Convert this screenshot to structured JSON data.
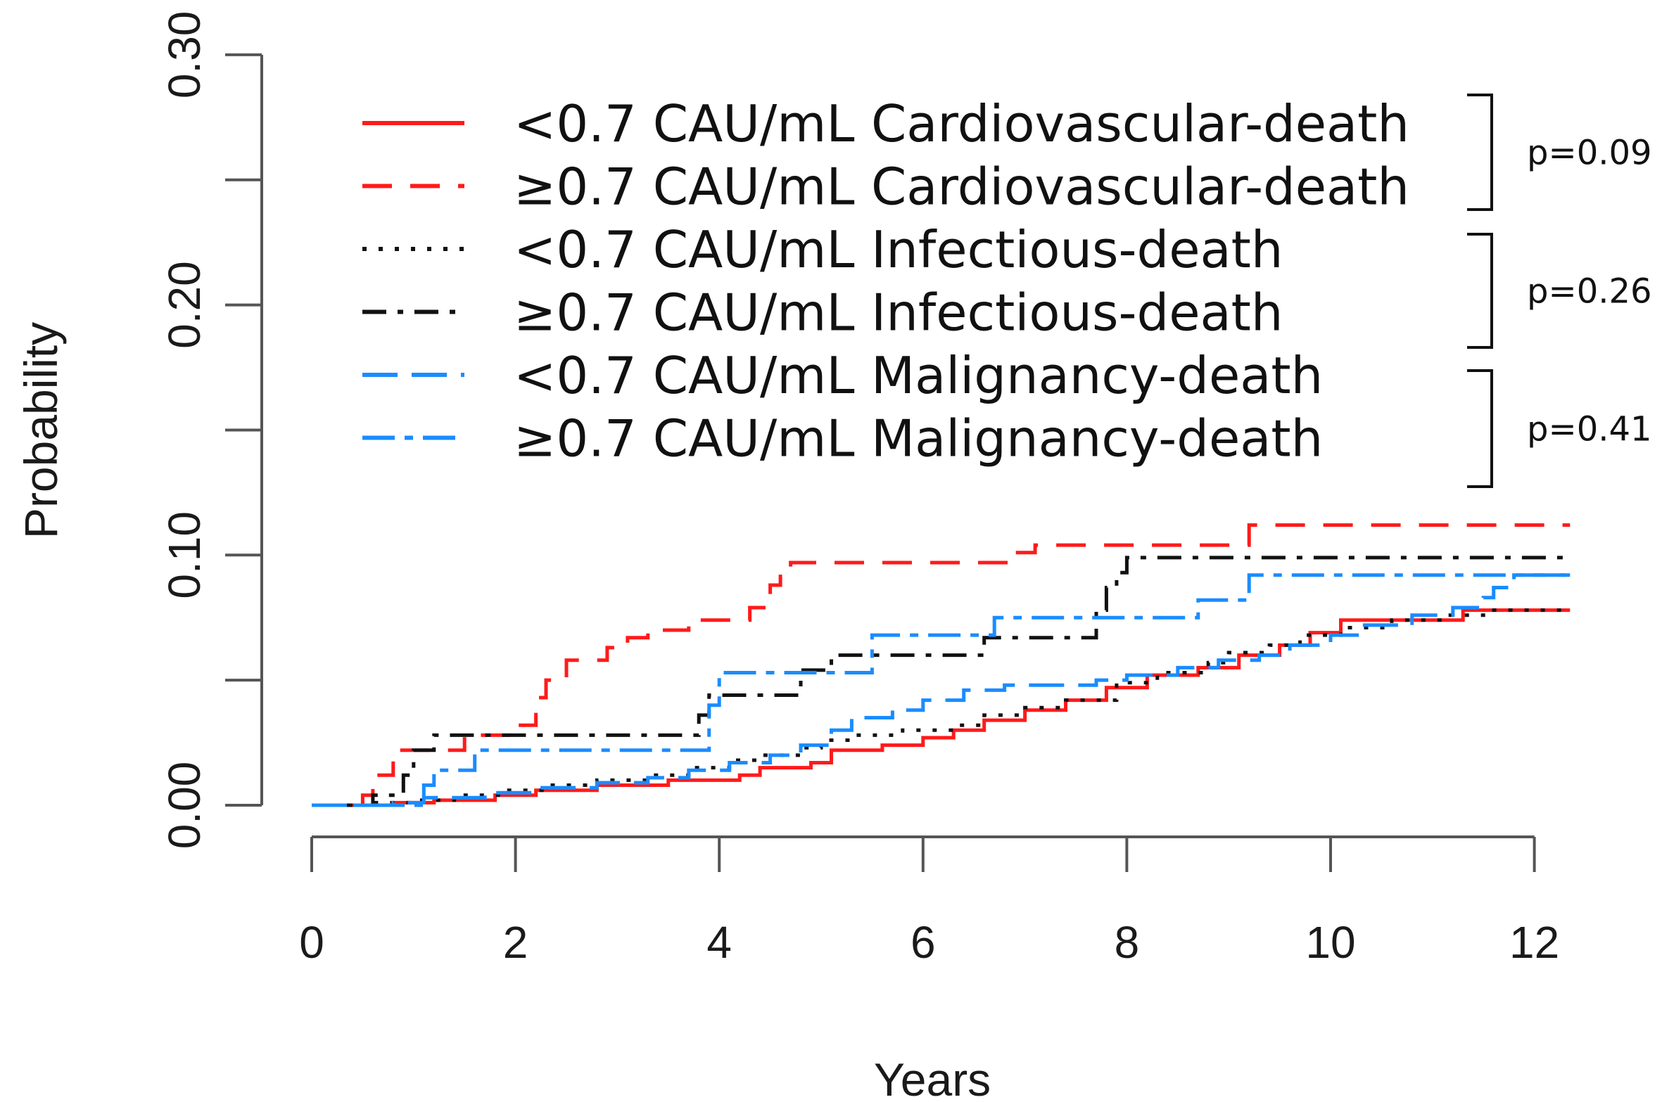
{
  "chart_data": {
    "type": "line",
    "subtype": "step",
    "xlabel": "Years",
    "ylabel": "Probability",
    "xlim": [
      0,
      12.4
    ],
    "ylim": [
      0,
      0.3
    ],
    "xticks": [
      0,
      2,
      4,
      6,
      8,
      10,
      12
    ],
    "xtick_labels": [
      "0",
      "2",
      "4",
      "6",
      "8",
      "10",
      "12"
    ],
    "yticks": [
      0,
      0.05,
      0.1,
      0.15,
      0.2,
      0.25,
      0.3
    ],
    "ytick_labels": [
      "0.00",
      "",
      "0.10",
      "",
      "0.20",
      "",
      "0.30"
    ],
    "series": [
      {
        "name": "<0.7 CAU/mL Cardiovascular-death",
        "color": "#ff1a1a",
        "dash": "solid",
        "points": [
          [
            0,
            0
          ],
          [
            0.8,
            0.001
          ],
          [
            1.2,
            0.002
          ],
          [
            1.8,
            0.004
          ],
          [
            2.2,
            0.006
          ],
          [
            2.8,
            0.008
          ],
          [
            3.5,
            0.01
          ],
          [
            4.2,
            0.012
          ],
          [
            4.4,
            0.015
          ],
          [
            4.9,
            0.017
          ],
          [
            5.1,
            0.022
          ],
          [
            5.6,
            0.024
          ],
          [
            6.0,
            0.027
          ],
          [
            6.3,
            0.03
          ],
          [
            6.6,
            0.034
          ],
          [
            7.0,
            0.038
          ],
          [
            7.4,
            0.042
          ],
          [
            7.8,
            0.047
          ],
          [
            8.2,
            0.052
          ],
          [
            8.7,
            0.055
          ],
          [
            9.1,
            0.06
          ],
          [
            9.5,
            0.064
          ],
          [
            9.8,
            0.069
          ],
          [
            10.1,
            0.074
          ],
          [
            10.6,
            0.074
          ],
          [
            11.0,
            0.074
          ],
          [
            11.3,
            0.078
          ],
          [
            12.35,
            0.078
          ]
        ]
      },
      {
        "name": "≥0.7 CAU/mL Cardiovascular-death",
        "color": "#ff1a1a",
        "dash": "longdash",
        "points": [
          [
            0,
            0
          ],
          [
            0.5,
            0.004
          ],
          [
            0.6,
            0.012
          ],
          [
            0.8,
            0.022
          ],
          [
            1.2,
            0.022
          ],
          [
            1.5,
            0.028
          ],
          [
            2.0,
            0.032
          ],
          [
            2.2,
            0.043
          ],
          [
            2.3,
            0.05
          ],
          [
            2.5,
            0.058
          ],
          [
            2.9,
            0.063
          ],
          [
            3.1,
            0.067
          ],
          [
            3.3,
            0.07
          ],
          [
            3.7,
            0.074
          ],
          [
            4.3,
            0.079
          ],
          [
            4.5,
            0.088
          ],
          [
            4.6,
            0.093
          ],
          [
            4.7,
            0.097
          ],
          [
            5.3,
            0.097
          ],
          [
            6.9,
            0.101
          ],
          [
            7.1,
            0.104
          ],
          [
            9.0,
            0.104
          ],
          [
            9.2,
            0.112
          ],
          [
            12.35,
            0.112
          ]
        ]
      },
      {
        "name": "<0.7 CAU/mL Infectious-death",
        "color": "#111111",
        "dash": "dotted",
        "points": [
          [
            0,
            0
          ],
          [
            0.6,
            0.001
          ],
          [
            1.0,
            0.002
          ],
          [
            1.4,
            0.004
          ],
          [
            1.9,
            0.006
          ],
          [
            2.3,
            0.008
          ],
          [
            2.8,
            0.01
          ],
          [
            3.3,
            0.012
          ],
          [
            3.7,
            0.015
          ],
          [
            4.1,
            0.018
          ],
          [
            4.4,
            0.02
          ],
          [
            4.8,
            0.023
          ],
          [
            5.0,
            0.026
          ],
          [
            5.3,
            0.028
          ],
          [
            5.8,
            0.03
          ],
          [
            6.3,
            0.032
          ],
          [
            6.6,
            0.036
          ],
          [
            7.0,
            0.039
          ],
          [
            7.4,
            0.042
          ],
          [
            7.9,
            0.049
          ],
          [
            8.3,
            0.053
          ],
          [
            8.8,
            0.057
          ],
          [
            9.0,
            0.061
          ],
          [
            9.4,
            0.064
          ],
          [
            9.7,
            0.068
          ],
          [
            10.1,
            0.071
          ],
          [
            10.6,
            0.074
          ],
          [
            11.1,
            0.076
          ],
          [
            11.5,
            0.078
          ],
          [
            12.35,
            0.078
          ]
        ]
      },
      {
        "name": "≥0.7 CAU/mL Infectious-death",
        "color": "#111111",
        "dash": "dashdot",
        "points": [
          [
            0,
            0
          ],
          [
            0.6,
            0.004
          ],
          [
            0.9,
            0.012
          ],
          [
            1.0,
            0.022
          ],
          [
            1.2,
            0.028
          ],
          [
            3.6,
            0.028
          ],
          [
            3.8,
            0.036
          ],
          [
            3.9,
            0.044
          ],
          [
            4.7,
            0.044
          ],
          [
            4.8,
            0.054
          ],
          [
            5.1,
            0.06
          ],
          [
            6.5,
            0.06
          ],
          [
            6.6,
            0.067
          ],
          [
            7.6,
            0.067
          ],
          [
            7.7,
            0.078
          ],
          [
            7.8,
            0.087
          ],
          [
            7.9,
            0.093
          ],
          [
            8.0,
            0.099
          ],
          [
            12.35,
            0.099
          ]
        ]
      },
      {
        "name": "<0.7 CAU/mL Malignancy-death",
        "color": "#1a8cff",
        "dash": "dashed",
        "points": [
          [
            0,
            0
          ],
          [
            0.8,
            0.001
          ],
          [
            1.1,
            0.003
          ],
          [
            1.7,
            0.005
          ],
          [
            2.2,
            0.007
          ],
          [
            2.8,
            0.009
          ],
          [
            3.3,
            0.011
          ],
          [
            3.7,
            0.014
          ],
          [
            4.1,
            0.017
          ],
          [
            4.5,
            0.02
          ],
          [
            4.8,
            0.024
          ],
          [
            5.1,
            0.03
          ],
          [
            5.3,
            0.035
          ],
          [
            5.7,
            0.038
          ],
          [
            6.0,
            0.042
          ],
          [
            6.4,
            0.046
          ],
          [
            6.8,
            0.048
          ],
          [
            7.3,
            0.048
          ],
          [
            7.7,
            0.05
          ],
          [
            8.0,
            0.052
          ],
          [
            8.5,
            0.055
          ],
          [
            8.9,
            0.058
          ],
          [
            9.3,
            0.06
          ],
          [
            9.6,
            0.064
          ],
          [
            10.0,
            0.068
          ],
          [
            10.3,
            0.072
          ],
          [
            10.8,
            0.076
          ],
          [
            11.2,
            0.079
          ],
          [
            11.5,
            0.083
          ],
          [
            11.6,
            0.087
          ],
          [
            11.8,
            0.092
          ],
          [
            12.35,
            0.092
          ]
        ]
      },
      {
        "name": "≥0.7 CAU/mL Malignancy-death",
        "color": "#1a8cff",
        "dash": "longdashdot",
        "points": [
          [
            0,
            0
          ],
          [
            1.1,
            0.008
          ],
          [
            1.2,
            0.014
          ],
          [
            1.6,
            0.022
          ],
          [
            3.8,
            0.022
          ],
          [
            3.9,
            0.04
          ],
          [
            4.0,
            0.053
          ],
          [
            5.4,
            0.053
          ],
          [
            5.5,
            0.068
          ],
          [
            6.6,
            0.068
          ],
          [
            6.7,
            0.075
          ],
          [
            8.6,
            0.075
          ],
          [
            8.7,
            0.082
          ],
          [
            9.2,
            0.092
          ],
          [
            12.35,
            0.092
          ]
        ]
      }
    ],
    "legend": {
      "position": "top-right",
      "entries": [
        {
          "group": "<0.7 CAU/mL",
          "label": "Cardiovascular-death"
        },
        {
          "group": "≥0.7 CAU/mL",
          "label": "Cardiovascular-death"
        },
        {
          "group": "<0.7 CAU/mL",
          "label": "Infectious-death"
        },
        {
          "group": "≥0.7 CAU/mL",
          "label": "Infectious-death"
        },
        {
          "group": "<0.7 CAU/mL",
          "label": "Malignancy-death"
        },
        {
          "group": "≥0.7 CAU/mL",
          "label": "Malignancy-death"
        }
      ]
    },
    "annotations": [
      {
        "text": "p=0.09",
        "applies_to": [
          "<0.7 CAU/mL Cardiovascular-death",
          "≥0.7 CAU/mL Cardiovascular-death"
        ]
      },
      {
        "text": "p=0.26",
        "applies_to": [
          "<0.7 CAU/mL Infectious-death",
          "≥0.7 CAU/mL Infectious-death"
        ]
      },
      {
        "text": "p=0.41",
        "applies_to": [
          "<0.7 CAU/mL Malignancy-death",
          "≥0.7 CAU/mL Malignancy-death"
        ]
      }
    ]
  }
}
